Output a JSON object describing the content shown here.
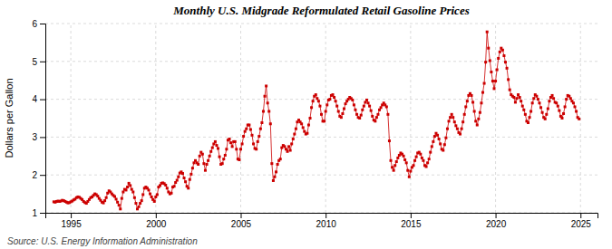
{
  "chart_data": {
    "type": "line",
    "title": "Monthly U.S. Midgrade Reformulated Retail Gasoline Prices",
    "ylabel": "Dollars per Gallon",
    "annotations": [
      "Source: U.S. Energy Information Administration"
    ],
    "color": "#cc0000",
    "marker": "square",
    "line_style": "solid",
    "grid": true,
    "xlim": [
      1993.5,
      2026.0
    ],
    "xticks": [
      1995,
      2000,
      2005,
      2010,
      2015,
      2020,
      2025
    ],
    "ylim": [
      1,
      6
    ],
    "yticks": [
      1,
      2,
      3,
      4,
      5,
      6
    ],
    "x": [
      1994,
      1994.0833,
      1994.1667,
      1994.25,
      1994.3333,
      1994.4167,
      1994.5,
      1994.5833,
      1994.6667,
      1994.75,
      1994.8333,
      1994.9167,
      1995,
      1995.0833,
      1995.1667,
      1995.25,
      1995.3333,
      1995.4167,
      1995.5,
      1995.5833,
      1995.6667,
      1995.75,
      1995.8333,
      1995.9167,
      1996,
      1996.0833,
      1996.1667,
      1996.25,
      1996.3333,
      1996.4167,
      1996.5,
      1996.5833,
      1996.6667,
      1996.75,
      1996.8333,
      1996.9167,
      1997,
      1997.0833,
      1997.1667,
      1997.25,
      1997.3333,
      1997.4167,
      1997.5,
      1997.5833,
      1997.6667,
      1997.75,
      1997.8333,
      1997.9167,
      1998,
      1998.0833,
      1998.1667,
      1998.25,
      1998.3333,
      1998.4167,
      1998.5,
      1998.5833,
      1998.6667,
      1998.75,
      1998.8333,
      1998.9167,
      1999,
      1999.0833,
      1999.1667,
      1999.25,
      1999.3333,
      1999.4167,
      1999.5,
      1999.5833,
      1999.6667,
      1999.75,
      1999.8333,
      1999.9167,
      2000,
      2000.0833,
      2000.1667,
      2000.25,
      2000.3333,
      2000.4167,
      2000.5,
      2000.5833,
      2000.6667,
      2000.75,
      2000.8333,
      2000.9167,
      2001,
      2001.0833,
      2001.1667,
      2001.25,
      2001.3333,
      2001.4167,
      2001.5,
      2001.5833,
      2001.6667,
      2001.75,
      2001.8333,
      2001.9167,
      2002,
      2002.0833,
      2002.1667,
      2002.25,
      2002.3333,
      2002.4167,
      2002.5,
      2002.5833,
      2002.6667,
      2002.75,
      2002.8333,
      2002.9167,
      2003,
      2003.0833,
      2003.1667,
      2003.25,
      2003.3333,
      2003.4167,
      2003.5,
      2003.5833,
      2003.6667,
      2003.75,
      2003.8333,
      2003.9167,
      2004,
      2004.0833,
      2004.1667,
      2004.25,
      2004.3333,
      2004.4167,
      2004.5,
      2004.5833,
      2004.6667,
      2004.75,
      2004.8333,
      2004.9167,
      2005,
      2005.0833,
      2005.1667,
      2005.25,
      2005.3333,
      2005.4167,
      2005.5,
      2005.5833,
      2005.6667,
      2005.75,
      2005.8333,
      2005.9167,
      2006,
      2006.0833,
      2006.1667,
      2006.25,
      2006.3333,
      2006.4167,
      2006.5,
      2006.5833,
      2006.6667,
      2006.75,
      2006.8333,
      2006.9167,
      2007,
      2007.0833,
      2007.1667,
      2007.25,
      2007.3333,
      2007.4167,
      2007.5,
      2007.5833,
      2007.6667,
      2007.75,
      2007.8333,
      2007.9167,
      2008,
      2008.0833,
      2008.1667,
      2008.25,
      2008.3333,
      2008.4167,
      2008.5,
      2008.5833,
      2008.6667,
      2008.75,
      2008.8333,
      2008.9167,
      2009,
      2009.0833,
      2009.1667,
      2009.25,
      2009.3333,
      2009.4167,
      2009.5,
      2009.5833,
      2009.6667,
      2009.75,
      2009.8333,
      2009.9167,
      2010,
      2010.0833,
      2010.1667,
      2010.25,
      2010.3333,
      2010.4167,
      2010.5,
      2010.5833,
      2010.6667,
      2010.75,
      2010.8333,
      2010.9167,
      2011,
      2011.0833,
      2011.1667,
      2011.25,
      2011.3333,
      2011.4167,
      2011.5,
      2011.5833,
      2011.6667,
      2011.75,
      2011.8333,
      2011.9167,
      2012,
      2012.0833,
      2012.1667,
      2012.25,
      2012.3333,
      2012.4167,
      2012.5,
      2012.5833,
      2012.6667,
      2012.75,
      2012.8333,
      2012.9167,
      2013,
      2013.0833,
      2013.1667,
      2013.25,
      2013.3333,
      2013.4167,
      2013.5,
      2013.5833,
      2013.6667,
      2013.75,
      2013.8333,
      2013.9167,
      2014,
      2014.0833,
      2014.1667,
      2014.25,
      2014.3333,
      2014.4167,
      2014.5,
      2014.5833,
      2014.6667,
      2014.75,
      2014.8333,
      2014.9167,
      2015,
      2015.0833,
      2015.1667,
      2015.25,
      2015.3333,
      2015.4167,
      2015.5,
      2015.5833,
      2015.6667,
      2015.75,
      2015.8333,
      2015.9167,
      2016,
      2016.0833,
      2016.1667,
      2016.25,
      2016.3333,
      2016.4167,
      2016.5,
      2016.5833,
      2016.6667,
      2016.75,
      2016.8333,
      2016.9167,
      2017,
      2017.0833,
      2017.1667,
      2017.25,
      2017.3333,
      2017.4167,
      2017.5,
      2017.5833,
      2017.6667,
      2017.75,
      2017.8333,
      2017.9167,
      2018,
      2018.0833,
      2018.1667,
      2018.25,
      2018.3333,
      2018.4167,
      2018.5,
      2018.5833,
      2018.6667,
      2018.75,
      2018.8333,
      2018.9167,
      2019,
      2019.0833,
      2019.1667,
      2019.25,
      2019.3333,
      2019.4167,
      2019.5,
      2019.5833,
      2019.6667,
      2019.75,
      2019.8333,
      2019.9167,
      2020,
      2020.0833,
      2020.1667,
      2020.25,
      2020.3333,
      2020.4167,
      2020.5,
      2020.5833,
      2020.6667,
      2020.75,
      2020.8333,
      2020.9167,
      2021,
      2021.0833,
      2021.1667,
      2021.25,
      2021.3333,
      2021.4167,
      2021.5,
      2021.5833,
      2021.6667,
      2021.75,
      2021.8333,
      2021.9167,
      2022,
      2022.0833,
      2022.1667,
      2022.25,
      2022.3333,
      2022.4167,
      2022.5,
      2022.5833,
      2022.6667,
      2022.75,
      2022.8333,
      2022.9167,
      2023,
      2023.0833,
      2023.1667,
      2023.25,
      2023.3333,
      2023.4167,
      2023.5,
      2023.5833,
      2023.6667,
      2023.75,
      2023.8333,
      2023.9167,
      2024,
      2024.0833,
      2024.1667,
      2024.25,
      2024.3333,
      2024.4167,
      2024.5,
      2024.5833,
      2024.6667,
      2024.75,
      2024.8333,
      2024.9167
    ],
    "values": [
      1.29,
      1.28,
      1.3,
      1.31,
      1.3,
      1.31,
      1.33,
      1.32,
      1.3,
      1.28,
      1.26,
      1.27,
      1.29,
      1.31,
      1.34,
      1.36,
      1.4,
      1.42,
      1.41,
      1.38,
      1.35,
      1.3,
      1.27,
      1.25,
      1.3,
      1.35,
      1.4,
      1.42,
      1.46,
      1.5,
      1.48,
      1.44,
      1.38,
      1.33,
      1.28,
      1.26,
      1.32,
      1.4,
      1.52,
      1.58,
      1.55,
      1.5,
      1.46,
      1.43,
      1.36,
      1.28,
      1.2,
      1.1,
      1.38,
      1.55,
      1.62,
      1.6,
      1.68,
      1.78,
      1.72,
      1.62,
      1.55,
      1.4,
      1.25,
      1.1,
      1.16,
      1.25,
      1.32,
      1.48,
      1.65,
      1.68,
      1.65,
      1.6,
      1.5,
      1.42,
      1.35,
      1.3,
      1.42,
      1.48,
      1.68,
      1.72,
      1.78,
      1.79,
      1.77,
      1.73,
      1.65,
      1.55,
      1.5,
      1.52,
      1.68,
      1.7,
      1.8,
      1.86,
      1.95,
      2.05,
      2.08,
      2.04,
      1.92,
      1.82,
      1.7,
      1.65,
      1.88,
      2.02,
      2.18,
      2.32,
      2.38,
      2.32,
      2.28,
      2.5,
      2.6,
      2.55,
      2.3,
      2.12,
      2.28,
      2.38,
      2.5,
      2.62,
      2.72,
      2.82,
      2.88,
      2.78,
      2.7,
      2.48,
      2.28,
      2.3,
      2.42,
      2.52,
      2.68,
      2.92,
      2.95,
      2.85,
      2.75,
      2.88,
      2.88,
      2.68,
      2.42,
      2.4,
      2.68,
      2.82,
      3.02,
      3.15,
      3.22,
      3.32,
      3.32,
      3.2,
      3.05,
      2.82,
      2.7,
      2.68,
      2.88,
      3.02,
      3.22,
      3.38,
      3.68,
      4.08,
      4.35,
      3.9,
      3.68,
      3.35,
      2.3,
      1.85,
      1.95,
      2.08,
      2.28,
      2.38,
      2.42,
      2.72,
      2.78,
      2.75,
      2.68,
      2.62,
      2.75,
      2.65,
      2.82,
      2.95,
      3.08,
      3.22,
      3.4,
      3.45,
      3.4,
      3.35,
      3.25,
      3.15,
      3.08,
      3.1,
      3.32,
      3.5,
      3.78,
      3.95,
      4.08,
      4.12,
      4.02,
      3.95,
      3.82,
      3.6,
      3.42,
      3.42,
      3.68,
      3.85,
      3.98,
      4.0,
      4.1,
      4.12,
      4.05,
      3.95,
      3.82,
      3.68,
      3.55,
      3.52,
      3.62,
      3.75,
      3.88,
      3.95,
      4.0,
      4.05,
      4.02,
      3.98,
      3.85,
      3.72,
      3.6,
      3.52,
      3.5,
      3.58,
      3.72,
      3.82,
      3.92,
      3.98,
      3.9,
      3.82,
      3.7,
      3.55,
      3.45,
      3.42,
      3.52,
      3.6,
      3.72,
      3.78,
      3.85,
      3.9,
      3.85,
      3.8,
      3.6,
      2.9,
      2.38,
      2.2,
      2.12,
      2.25,
      2.35,
      2.45,
      2.52,
      2.58,
      2.55,
      2.5,
      2.4,
      2.32,
      2.12,
      1.95,
      2.1,
      2.2,
      2.25,
      2.38,
      2.48,
      2.58,
      2.6,
      2.55,
      2.45,
      2.38,
      2.25,
      2.22,
      2.32,
      2.42,
      2.6,
      2.75,
      2.88,
      3.02,
      3.1,
      3.05,
      2.95,
      2.82,
      2.68,
      2.65,
      2.8,
      2.98,
      3.22,
      3.42,
      3.52,
      3.6,
      3.52,
      3.4,
      3.3,
      3.22,
      3.12,
      3.08,
      3.22,
      3.4,
      3.6,
      3.8,
      3.95,
      4.1,
      4.15,
      4.1,
      3.92,
      3.68,
      3.42,
      3.32,
      3.48,
      3.65,
      3.9,
      4.18,
      4.42,
      4.98,
      5.78,
      5.35,
      5.02,
      4.72,
      4.48,
      4.28,
      4.48,
      4.78,
      5.08,
      5.25,
      5.35,
      5.3,
      5.15,
      4.98,
      4.82,
      4.52,
      4.25,
      4.12,
      4.08,
      4.05,
      3.92,
      4.02,
      4.12,
      4.05,
      3.95,
      3.82,
      3.72,
      3.6,
      3.42,
      3.38,
      3.52,
      3.68,
      3.9,
      4.02,
      4.12,
      4.08,
      4.0,
      3.9,
      3.78,
      3.65,
      3.52,
      3.48,
      3.6,
      3.75,
      3.95,
      4.05,
      4.1,
      4.02,
      3.92,
      3.9,
      3.82,
      3.7,
      3.55,
      3.5,
      3.62,
      3.8,
      4.0,
      4.1,
      4.08,
      4.02,
      3.95,
      3.9,
      3.8,
      3.68,
      3.52,
      3.48
    ]
  }
}
